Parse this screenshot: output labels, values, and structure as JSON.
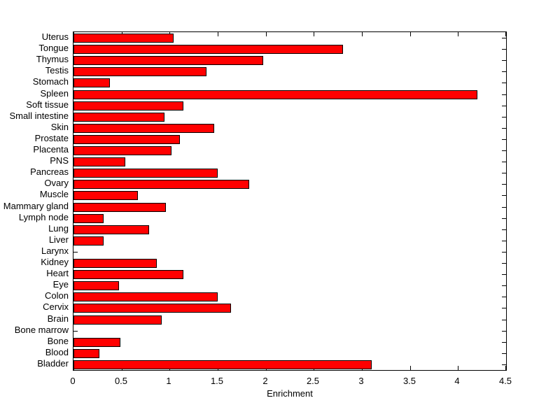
{
  "chart_data": {
    "type": "bar",
    "orientation": "horizontal",
    "title": "",
    "xlabel": "Enrichment",
    "ylabel": "",
    "grid": false,
    "legend": null,
    "xlim": [
      0,
      4.5
    ],
    "xticks": [
      0,
      0.5,
      1,
      1.5,
      2,
      2.5,
      3,
      3.5,
      4,
      4.5
    ],
    "xtick_labels": [
      "0",
      "0.5",
      "1",
      "1.5",
      "2",
      "2.5",
      "3",
      "3.5",
      "4",
      "4.5"
    ],
    "categories": [
      "Uterus",
      "Tongue",
      "Thymus",
      "Testis",
      "Stomach",
      "Spleen",
      "Soft tissue",
      "Small intestine",
      "Skin",
      "Prostate",
      "Placenta",
      "PNS",
      "Pancreas",
      "Ovary",
      "Muscle",
      "Mammary gland",
      "Lymph node",
      "Lung",
      "Liver",
      "Larynx",
      "Kidney",
      "Heart",
      "Eye",
      "Colon",
      "Cervix",
      "Brain",
      "Bone marrow",
      "Bone",
      "Blood",
      "Bladder"
    ],
    "values": [
      1.04,
      2.8,
      1.97,
      1.38,
      0.38,
      4.2,
      1.14,
      0.95,
      1.46,
      1.11,
      1.02,
      0.54,
      1.5,
      1.83,
      0.67,
      0.96,
      0.31,
      0.79,
      0.31,
      0.0,
      0.87,
      1.14,
      0.47,
      1.5,
      1.64,
      0.92,
      0.0,
      0.49,
      0.27,
      3.1
    ],
    "bar_color": "#ff0000",
    "bar_edge_color": "#000000",
    "axis_color": "#000000",
    "background_color": "#ffffff"
  }
}
